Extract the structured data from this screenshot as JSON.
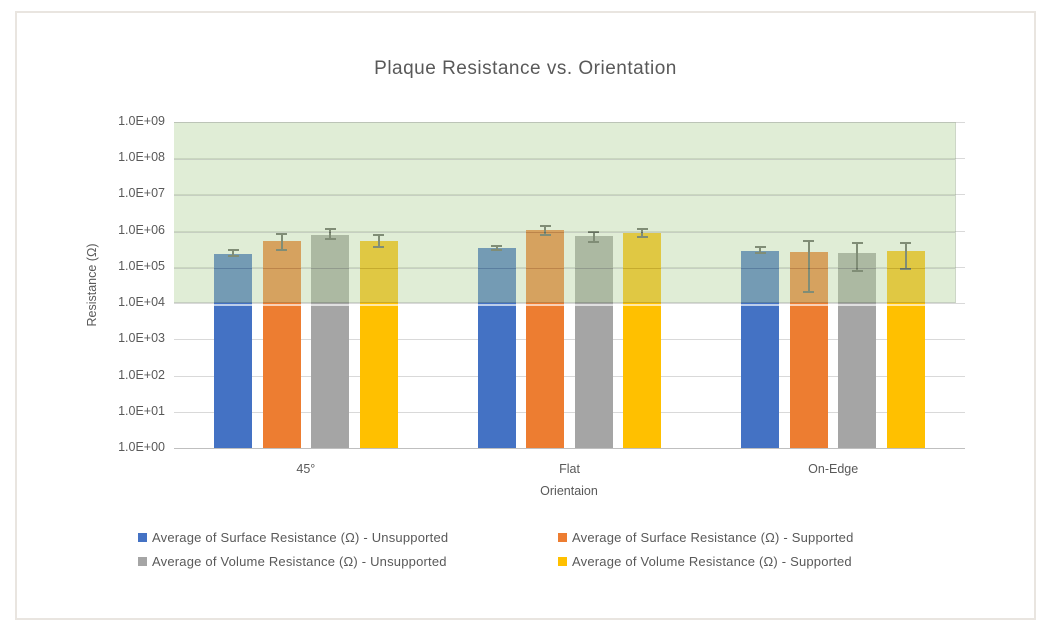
{
  "chart_data": {
    "type": "bar",
    "title": "Plaque Resistance vs. Orientation",
    "xlabel": "Orientaion",
    "ylabel": "Resistance (Ω)",
    "y_scale": "log",
    "ylim": [
      1,
      1000000000
    ],
    "y_tick_labels": [
      "1.0E+09",
      "1.0E+08",
      "1.0E+07",
      "1.0E+06",
      "1.0E+05",
      "1.0E+04",
      "1.0E+03",
      "1.0E+02",
      "1.0E+01",
      "1.0E+00"
    ],
    "categories": [
      "45°",
      "Flat",
      "On-Edge"
    ],
    "series": [
      {
        "name": "Average of Surface Resistance (Ω) - Unsupported",
        "color": "#4472C4",
        "values": [
          220000,
          330000,
          280000
        ],
        "err_high": [
          300000,
          375000,
          350000
        ],
        "err_low": [
          195000,
          290000,
          240000
        ]
      },
      {
        "name": "Average of Surface Resistance (Ω) - Supported",
        "color": "#ED7D31",
        "values": [
          510000,
          1050000,
          260000
        ],
        "err_high": [
          810000,
          1350000,
          520000
        ],
        "err_low": [
          290000,
          760000,
          20000
        ]
      },
      {
        "name": "Average of Volume Resistance (Ω) - Unsupported",
        "color": "#A5A5A5",
        "values": [
          750000,
          700000,
          240000
        ],
        "err_high": [
          1100000,
          910000,
          450000
        ],
        "err_low": [
          590000,
          490000,
          78000
        ]
      },
      {
        "name": "Average of Volume Resistance (Ω) - Supported",
        "color": "#FFC000",
        "values": [
          530000,
          870000,
          280000
        ],
        "err_high": [
          780000,
          1120000,
          470000
        ],
        "err_low": [
          350000,
          690000,
          90000
        ]
      }
    ],
    "highlight_band": {
      "y_from": 10000,
      "y_to": 1000000000,
      "fill": "#b7d5a0",
      "opacity": 0.42
    },
    "grid": true,
    "legend_position": "bottom",
    "text_color": "#595959",
    "gridline_color": "#d9d9d9",
    "axis_line_color": "#bfbfbf",
    "error_bar_color": "#595959",
    "frame_border_color": "#e9e5e0"
  }
}
